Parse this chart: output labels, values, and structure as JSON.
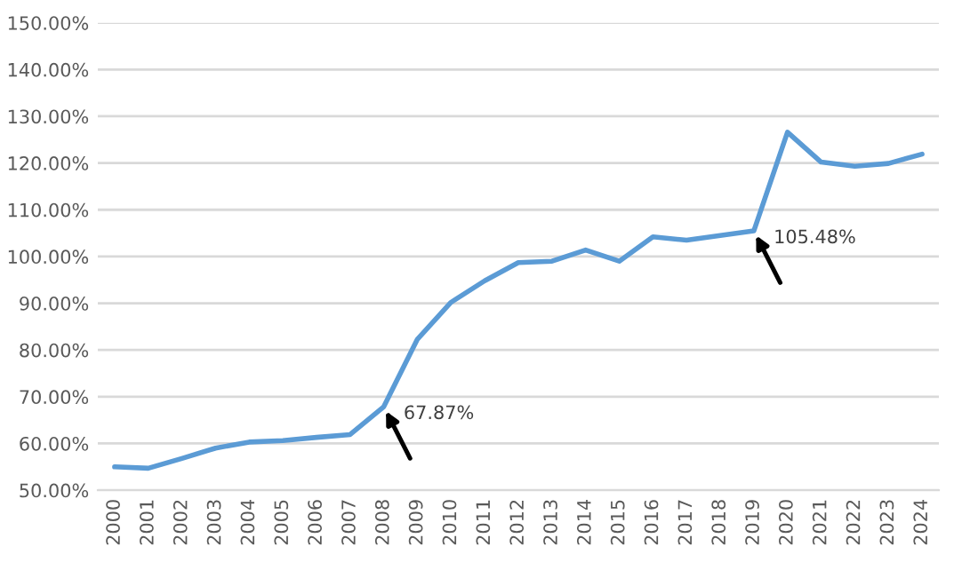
{
  "chart_data": {
    "type": "line",
    "categories": [
      "2000",
      "2001",
      "2002",
      "2003",
      "2004",
      "2005",
      "2006",
      "2007",
      "2008",
      "2009",
      "2010",
      "2011",
      "2012",
      "2013",
      "2014",
      "2015",
      "2016",
      "2017",
      "2018",
      "2019",
      "2020",
      "2021",
      "2022",
      "2023",
      "2024"
    ],
    "series": [
      {
        "color": "#5b9bd5",
        "values": [
          55.0,
          54.7,
          56.8,
          59.0,
          60.3,
          60.6,
          61.3,
          61.9,
          67.87,
          82.3,
          90.2,
          94.8,
          98.7,
          99.0,
          101.4,
          99.0,
          104.2,
          103.5,
          104.5,
          105.48,
          126.6,
          120.2,
          119.3,
          119.9,
          121.9
        ]
      }
    ],
    "ylim": [
      50,
      150
    ],
    "yticks": [
      {
        "value": 50,
        "label": "50.00%"
      },
      {
        "value": 60,
        "label": "60.00%"
      },
      {
        "value": 70,
        "label": "70.00%"
      },
      {
        "value": 80,
        "label": "80.00%"
      },
      {
        "value": 90,
        "label": "90.00%"
      },
      {
        "value": 100,
        "label": "100.00%"
      },
      {
        "value": 110,
        "label": "110.00%"
      },
      {
        "value": 120,
        "label": "120.00%"
      },
      {
        "value": 130,
        "label": "130.00%"
      },
      {
        "value": 140,
        "label": "140.00%"
      },
      {
        "value": 150,
        "label": "150.00%"
      }
    ],
    "annotations": [
      {
        "text": "67.87%",
        "x": "2008",
        "y": 67.87
      },
      {
        "text": "105.48%",
        "x": "2019",
        "y": 105.48
      }
    ],
    "grid": "y",
    "legend": false,
    "marker": "none",
    "line_style": "solid"
  }
}
